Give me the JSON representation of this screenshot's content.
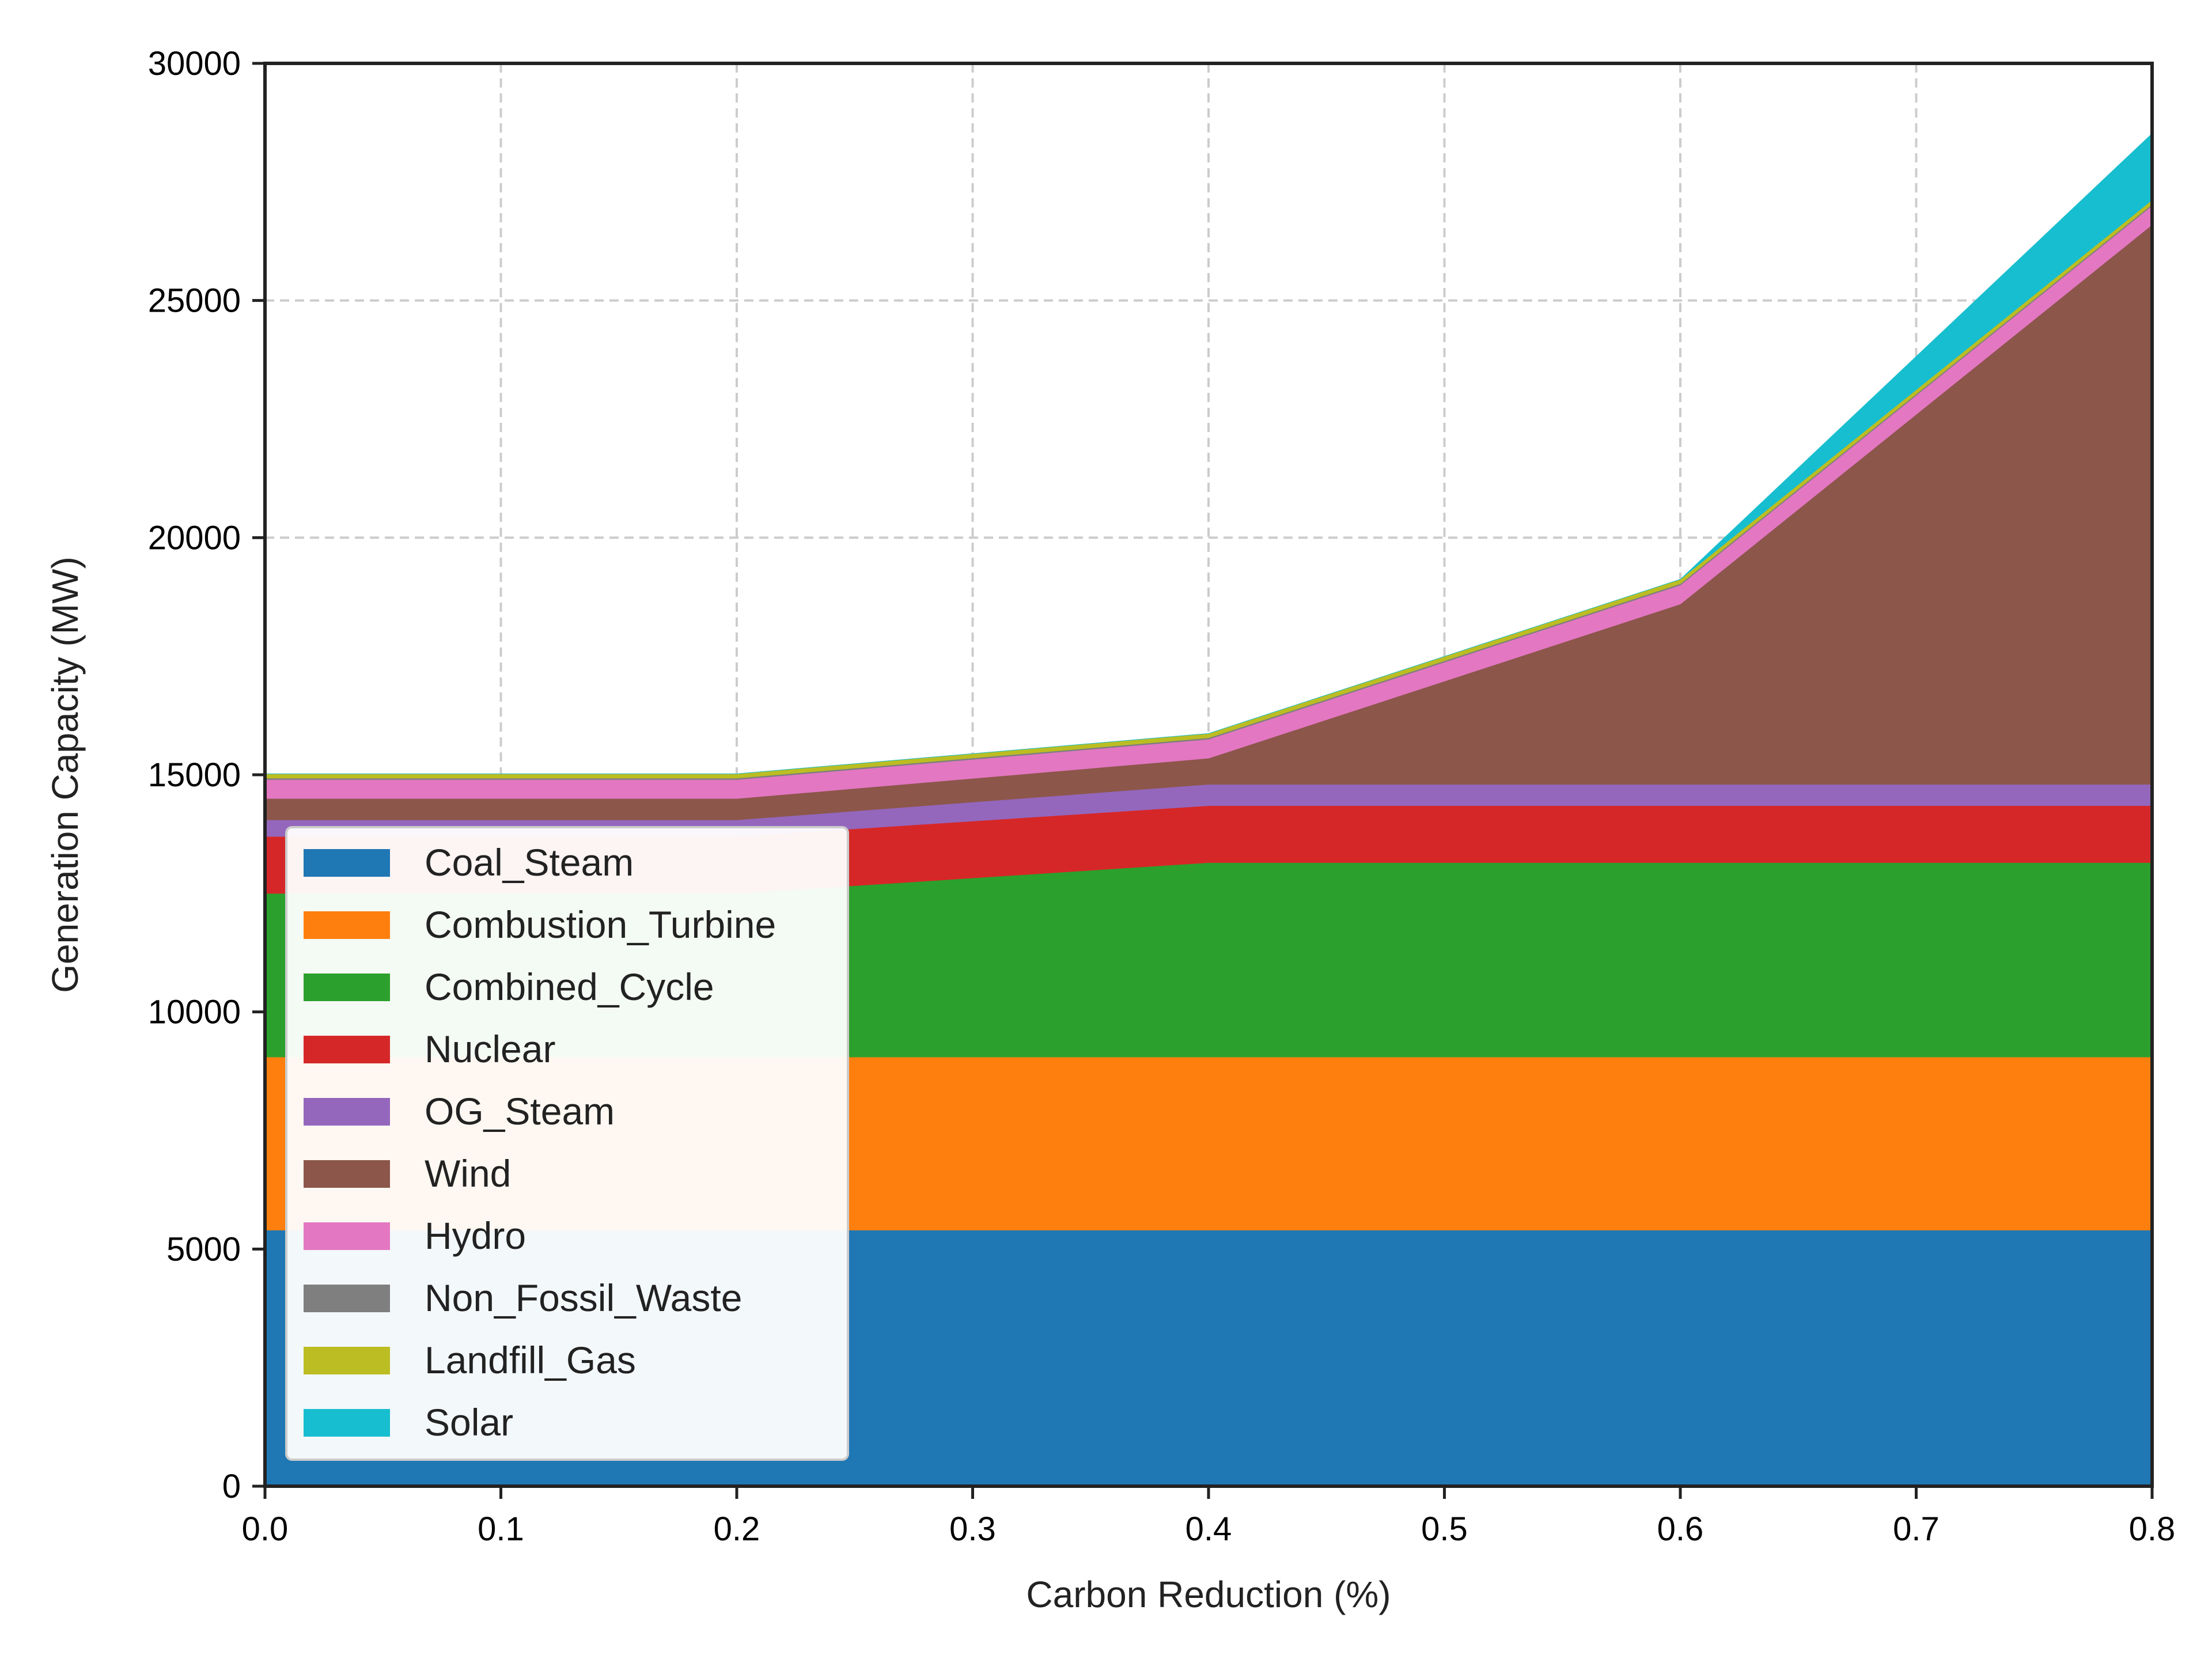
{
  "chart_data": {
    "type": "area",
    "stacked": true,
    "title": "",
    "xlabel": "Carbon Reduction (%)",
    "ylabel": "Generation Capacity (MW)",
    "xlim": [
      0.0,
      0.8
    ],
    "ylim": [
      0,
      30000
    ],
    "xticks": [
      "0.0",
      "0.1",
      "0.2",
      "0.3",
      "0.4",
      "0.5",
      "0.6",
      "0.7",
      "0.8"
    ],
    "yticks": [
      "0",
      "5000",
      "10000",
      "15000",
      "20000",
      "25000",
      "30000"
    ],
    "grid": true,
    "legend_position": "lower-left",
    "x": [
      0.0,
      0.2,
      0.4,
      0.6,
      0.8
    ],
    "series": [
      {
        "name": "Coal_Steam",
        "color": "#1f77b4",
        "values": [
          5400,
          5400,
          5400,
          5400,
          5400
        ]
      },
      {
        "name": "Combustion_Turbine",
        "color": "#ff7f0e",
        "values": [
          3650,
          3650,
          3650,
          3650,
          3650
        ]
      },
      {
        "name": "Combined_Cycle",
        "color": "#2ca02c",
        "values": [
          3450,
          3450,
          4100,
          4100,
          4100
        ]
      },
      {
        "name": "Nuclear",
        "color": "#d62728",
        "values": [
          1200,
          1200,
          1200,
          1200,
          1200
        ]
      },
      {
        "name": "OG_Steam",
        "color": "#9467bd",
        "values": [
          350,
          350,
          450,
          450,
          450
        ]
      },
      {
        "name": "Wind",
        "color": "#8c564b",
        "values": [
          450,
          450,
          550,
          3800,
          11800
        ]
      },
      {
        "name": "Hydro",
        "color": "#e377c2",
        "values": [
          400,
          400,
          400,
          400,
          400
        ]
      },
      {
        "name": "Non_Fossil_Waste",
        "color": "#7f7f7f",
        "values": [
          30,
          30,
          30,
          30,
          30
        ]
      },
      {
        "name": "Landfill_Gas",
        "color": "#bcbd22",
        "values": [
          90,
          90,
          90,
          90,
          90
        ]
      },
      {
        "name": "Solar",
        "color": "#17becf",
        "values": [
          0,
          0,
          0,
          0,
          1400
        ]
      }
    ]
  }
}
